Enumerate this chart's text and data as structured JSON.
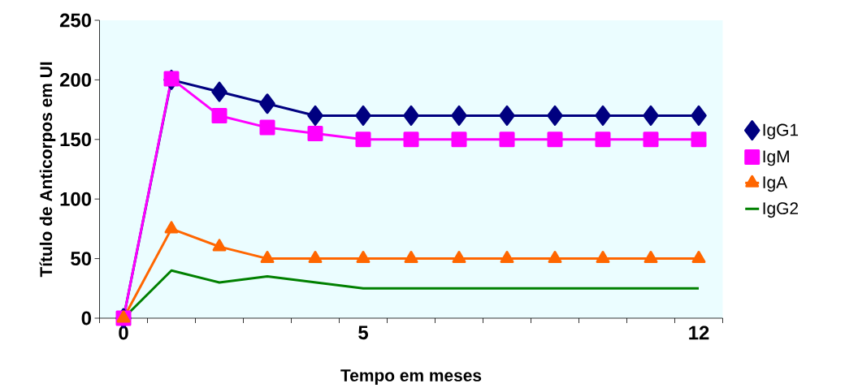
{
  "chart_data": {
    "type": "line",
    "xlabel": "Tempo em meses",
    "ylabel": "Título de Anticorpos em UI",
    "categories": [
      "0",
      null,
      null,
      null,
      null,
      "5",
      null,
      null,
      null,
      null,
      null,
      null,
      "12"
    ],
    "ylim": [
      0,
      250
    ],
    "yticks": [
      0,
      50,
      100,
      150,
      200,
      250
    ],
    "legend": "right",
    "grid": false,
    "line_style": "solid",
    "series": [
      {
        "name": "IgG1",
        "color": "#000080",
        "marker": "diamond",
        "values": [
          0,
          200,
          190,
          180,
          170,
          170,
          170,
          170,
          170,
          170,
          170,
          170,
          170
        ]
      },
      {
        "name": "IgM",
        "color": "#ff00ff",
        "marker": "square",
        "values": [
          0,
          201,
          170,
          160,
          155,
          150,
          150,
          150,
          150,
          150,
          150,
          150,
          150
        ]
      },
      {
        "name": "IgA",
        "color": "#ff6600",
        "marker": "triangle",
        "values": [
          0,
          75,
          60,
          50,
          50,
          50,
          50,
          50,
          50,
          50,
          50,
          50,
          50
        ]
      },
      {
        "name": "IgG2",
        "color": "#008000",
        "marker": "none",
        "values": [
          0,
          40,
          30,
          35,
          30,
          25,
          25,
          25,
          25,
          25,
          25,
          25,
          25
        ]
      }
    ]
  }
}
